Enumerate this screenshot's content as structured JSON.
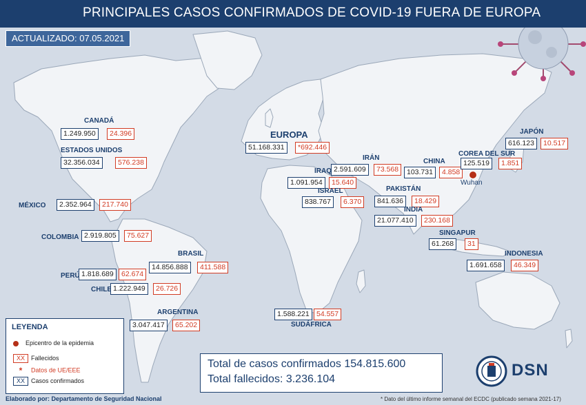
{
  "header": {
    "title": "PRINCIPALES CASOS CONFIRMADOS DE COVID-19 FUERA DE EUROPA",
    "updated": "ACTUALIZADO: 07.05.2021"
  },
  "regions": [
    {
      "id": "canada",
      "label": "CANADÁ",
      "cases": "1.249.950",
      "deaths": "24.396"
    },
    {
      "id": "usa",
      "label": "ESTADOS UNIDOS",
      "cases": "32.356.034",
      "deaths": "576.238"
    },
    {
      "id": "mexico",
      "label": "MÉXICO",
      "cases": "2.352.964",
      "deaths": "217.740"
    },
    {
      "id": "colombia",
      "label": "COLOMBIA",
      "cases": "2.919.805",
      "deaths": "75.627"
    },
    {
      "id": "brasil",
      "label": "BRASIL",
      "cases": "14.856.888",
      "deaths": "411.588"
    },
    {
      "id": "peru",
      "label": "PERÚ",
      "cases": "1.818.689",
      "deaths": "62.674"
    },
    {
      "id": "chile",
      "label": "CHILE",
      "cases": "1.222.949",
      "deaths": "26.726"
    },
    {
      "id": "argentina",
      "label": "ARGENTINA",
      "cases": "3.047.417",
      "deaths": "65.202"
    },
    {
      "id": "europa",
      "label": "EUROPA",
      "cases": "51.168.331",
      "deaths": "*692.446"
    },
    {
      "id": "iran",
      "label": "IRÁN",
      "cases": "2.591.609",
      "deaths": "73.568"
    },
    {
      "id": "iraq",
      "label": "IRAQ",
      "cases": "1.091.954",
      "deaths": "15.640"
    },
    {
      "id": "israel",
      "label": "ISRAEL",
      "cases": "838.767",
      "deaths": "6.370"
    },
    {
      "id": "pakistan",
      "label": "PAKISTÁN",
      "cases": "841.636",
      "deaths": "18.429"
    },
    {
      "id": "india",
      "label": "INDIA",
      "cases": "21.077.410",
      "deaths": "230.168"
    },
    {
      "id": "china",
      "label": "CHINA",
      "cases": "103.731",
      "deaths": "4.858"
    },
    {
      "id": "corea",
      "label": "COREA DEL SUR",
      "cases": "125.519",
      "deaths": "1.851"
    },
    {
      "id": "japon",
      "label": "JAPÓN",
      "cases": "616.123",
      "deaths": "10.517"
    },
    {
      "id": "singapur",
      "label": "SINGAPUR",
      "cases": "61.268",
      "deaths": "31"
    },
    {
      "id": "indonesia",
      "label": "INDONESIA",
      "cases": "1.691.658",
      "deaths": "46.349"
    },
    {
      "id": "sudafrica",
      "label": "SUDÁFRICA",
      "cases": "1.588.221",
      "deaths": "54.557"
    }
  ],
  "epicenter": {
    "label": "Wuhan"
  },
  "legend": {
    "title": "LEYENDA",
    "epicenter": "Epicentro de la epidemia",
    "deaths_sample": "XX",
    "deaths": "Fallecidos",
    "ue_mark": "*",
    "ue": "Datos de UE/EEE",
    "cases_sample": "XX",
    "cases": "Casos confirmados"
  },
  "totals": {
    "cases": "Total de casos confirmados 154.815.600",
    "deaths": "Total fallecidos: 3.236.104"
  },
  "footer": {
    "credit": "Elaborado por: Departamento de Seguridad Nacional",
    "note": "* Dato del último informe semanal del ECDC (publicado semana 2021-17)",
    "logo": "DSN"
  },
  "colors": {
    "ocean": "#d3dbe6",
    "land": "#f2f4f7",
    "land_stroke": "#9aa7b8",
    "navy": "#1c3f6e",
    "accent_red": "#d13a22"
  }
}
